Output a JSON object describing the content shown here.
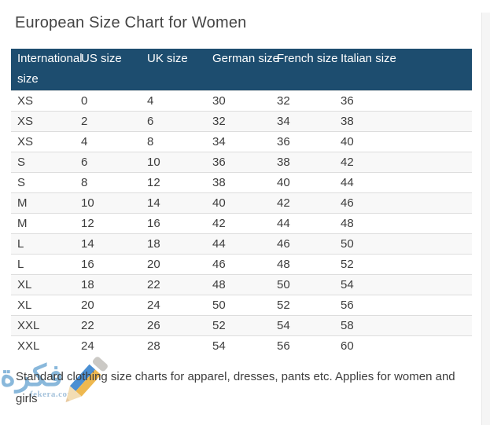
{
  "page": {
    "title": "European Size Chart for Women",
    "footer_text": "Standard clothing size charts for apparel, dresses, pants etc. Applies for women and girls"
  },
  "chart_data": {
    "type": "table",
    "title": "European Size Chart for Women",
    "headers": [
      "International size",
      "US size",
      "UK size",
      "German size",
      "French size",
      "Italian size"
    ],
    "rows": [
      [
        "XS",
        "0",
        "4",
        "30",
        "32",
        "36"
      ],
      [
        "XS",
        "2",
        "6",
        "32",
        "34",
        "38"
      ],
      [
        "XS",
        "4",
        "8",
        "34",
        "36",
        "40"
      ],
      [
        "S",
        "6",
        "10",
        "36",
        "38",
        "42"
      ],
      [
        "S",
        "8",
        "12",
        "38",
        "40",
        "44"
      ],
      [
        "M",
        "10",
        "14",
        "40",
        "42",
        "46"
      ],
      [
        "M",
        "12",
        "16",
        "42",
        "44",
        "48"
      ],
      [
        "L",
        "14",
        "18",
        "44",
        "46",
        "50"
      ],
      [
        "L",
        "16",
        "20",
        "46",
        "48",
        "52"
      ],
      [
        "XL",
        "18",
        "22",
        "48",
        "50",
        "54"
      ],
      [
        "XL",
        "20",
        "24",
        "50",
        "52",
        "56"
      ],
      [
        "XXL",
        "22",
        "26",
        "52",
        "54",
        "58"
      ],
      [
        "XXL",
        "24",
        "28",
        "54",
        "56",
        "60"
      ]
    ]
  },
  "watermark": {
    "logo_text": "فكرة",
    "domain_text": "fekera.com"
  },
  "colors": {
    "header_bg": "#1d4d6f",
    "header_text": "#ffffff",
    "row_stripe": "#f8f8f8",
    "row_border": "#dddddd",
    "body_text": "#3d3d3d",
    "title_text": "#444444",
    "watermark_blue": "#7fb2d9",
    "pencil_blue": "#4a8fd3",
    "pencil_yellow": "#eeb84f",
    "pencil_eraser": "#cbc9c5",
    "pencil_wood": "#f3ddb4",
    "scrollbar_track": "#f5f5f5"
  }
}
